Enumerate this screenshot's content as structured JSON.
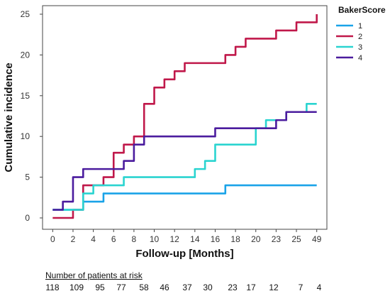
{
  "chart_data": {
    "type": "line",
    "step": true,
    "xlabel": "Follow-up [Months]",
    "ylabel": "Cumulative incidence",
    "ylim": [
      0,
      25
    ],
    "yticks": [
      0,
      5,
      10,
      15,
      20,
      25
    ],
    "x_tick_labels": [
      "0",
      "2",
      "4",
      "6",
      "8",
      "10",
      "12",
      "14",
      "16",
      "18",
      "20",
      "23",
      "25",
      "49"
    ],
    "legend": {
      "title": "BakerScore",
      "position": "top-right"
    },
    "series": [
      {
        "name": "1",
        "color": "#1aa3e8",
        "points": [
          [
            0,
            1
          ],
          [
            1,
            1
          ],
          [
            2,
            1
          ],
          [
            3,
            2
          ],
          [
            4,
            2
          ],
          [
            5,
            3
          ],
          [
            6,
            3
          ],
          [
            7,
            3
          ],
          [
            8,
            3
          ],
          [
            9,
            3
          ],
          [
            10,
            3
          ],
          [
            11,
            3
          ],
          [
            12,
            3
          ],
          [
            13,
            3
          ],
          [
            14,
            3
          ],
          [
            15,
            3
          ],
          [
            16,
            3
          ],
          [
            17,
            4
          ],
          [
            18,
            4
          ],
          [
            19,
            4
          ],
          [
            20,
            4
          ],
          [
            21,
            4
          ],
          [
            22,
            4
          ],
          [
            23,
            4
          ],
          [
            24,
            4
          ],
          [
            25,
            4
          ],
          [
            26,
            4
          ]
        ]
      },
      {
        "name": "2",
        "color": "#c0184a",
        "points": [
          [
            0,
            0
          ],
          [
            1,
            0
          ],
          [
            2,
            1
          ],
          [
            3,
            4
          ],
          [
            4,
            4
          ],
          [
            5,
            5
          ],
          [
            6,
            8
          ],
          [
            7,
            9
          ],
          [
            8,
            10
          ],
          [
            9,
            14
          ],
          [
            10,
            16
          ],
          [
            11,
            17
          ],
          [
            12,
            18
          ],
          [
            13,
            19
          ],
          [
            14,
            19
          ],
          [
            15,
            19
          ],
          [
            16,
            19
          ],
          [
            17,
            20
          ],
          [
            18,
            21
          ],
          [
            19,
            22
          ],
          [
            20,
            22
          ],
          [
            21,
            22
          ],
          [
            22,
            23
          ],
          [
            23,
            23
          ],
          [
            24,
            24
          ],
          [
            25,
            24
          ],
          [
            26,
            25
          ]
        ]
      },
      {
        "name": "3",
        "color": "#2ad4d0",
        "points": [
          [
            0,
            1
          ],
          [
            1,
            1
          ],
          [
            2,
            1
          ],
          [
            3,
            3
          ],
          [
            4,
            4
          ],
          [
            5,
            4
          ],
          [
            6,
            4
          ],
          [
            7,
            5
          ],
          [
            8,
            5
          ],
          [
            9,
            5
          ],
          [
            10,
            5
          ],
          [
            11,
            5
          ],
          [
            12,
            5
          ],
          [
            13,
            5
          ],
          [
            14,
            6
          ],
          [
            15,
            7
          ],
          [
            16,
            9
          ],
          [
            17,
            9
          ],
          [
            18,
            9
          ],
          [
            19,
            9
          ],
          [
            20,
            11
          ],
          [
            21,
            12
          ],
          [
            22,
            12
          ],
          [
            23,
            13
          ],
          [
            24,
            13
          ],
          [
            25,
            14
          ],
          [
            26,
            14
          ]
        ]
      },
      {
        "name": "4",
        "color": "#4b1c9e",
        "points": [
          [
            0,
            1
          ],
          [
            1,
            2
          ],
          [
            2,
            5
          ],
          [
            3,
            6
          ],
          [
            4,
            6
          ],
          [
            5,
            6
          ],
          [
            6,
            6
          ],
          [
            7,
            7
          ],
          [
            8,
            9
          ],
          [
            9,
            10
          ],
          [
            10,
            10
          ],
          [
            11,
            10
          ],
          [
            12,
            10
          ],
          [
            13,
            10
          ],
          [
            14,
            10
          ],
          [
            15,
            10
          ],
          [
            16,
            11
          ],
          [
            17,
            11
          ],
          [
            18,
            11
          ],
          [
            19,
            11
          ],
          [
            20,
            11
          ],
          [
            21,
            11
          ],
          [
            22,
            12
          ],
          [
            23,
            13
          ],
          [
            24,
            13
          ],
          [
            25,
            13
          ],
          [
            26,
            13
          ]
        ]
      }
    ]
  },
  "risk_table": {
    "title": "Number  of patients at risk",
    "values": [
      "118",
      "109",
      "95",
      "77",
      "58",
      "46",
      "37",
      "30",
      "23",
      "17",
      "12",
      "7",
      "4"
    ]
  }
}
